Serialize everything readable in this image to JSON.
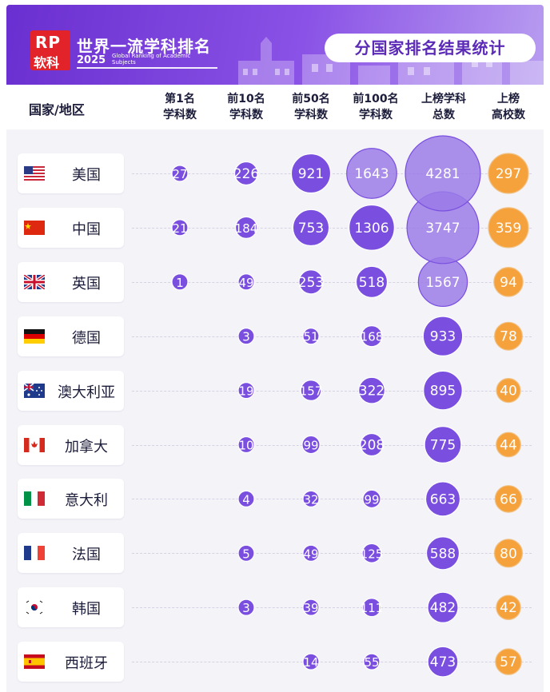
{
  "header": {
    "logo_mark": "RP",
    "logo_text": "软科",
    "title": "世界一流学科排名",
    "year": "2025",
    "subtitle": "Global Ranking of Academic Subjects",
    "stat_title": "分国家排名结果统计"
  },
  "columns": {
    "country": "国家/地区",
    "top1": [
      "第1名",
      "学科数"
    ],
    "top10": [
      "前10名",
      "学科数"
    ],
    "top50": [
      "前50名",
      "学科数"
    ],
    "top100": [
      "前100名",
      "学科数"
    ],
    "total": [
      "上榜学科",
      "总数"
    ],
    "universities": [
      "上榜",
      "高校数"
    ]
  },
  "colors": {
    "purple": "#7a4fe0",
    "purple_light": "#9b7be8",
    "orange": "#f5a23c"
  },
  "chart_data": {
    "type": "table",
    "series": [
      {
        "name": "第1名学科数"
      },
      {
        "name": "前10名学科数"
      },
      {
        "name": "前50名学科数"
      },
      {
        "name": "前100名学科数"
      },
      {
        "name": "上榜学科总数"
      },
      {
        "name": "上榜高校数"
      }
    ],
    "rows": [
      {
        "country": "美国",
        "flag": "us",
        "values": [
          27,
          226,
          921,
          1643,
          4281,
          297
        ]
      },
      {
        "country": "中国",
        "flag": "cn",
        "values": [
          21,
          184,
          753,
          1306,
          3747,
          359
        ]
      },
      {
        "country": "英国",
        "flag": "gb",
        "values": [
          1,
          49,
          253,
          518,
          1567,
          94
        ]
      },
      {
        "country": "德国",
        "flag": "de",
        "values": [
          null,
          3,
          51,
          168,
          933,
          78
        ]
      },
      {
        "country": "澳大利亚",
        "flag": "au",
        "values": [
          null,
          19,
          157,
          322,
          895,
          40
        ]
      },
      {
        "country": "加拿大",
        "flag": "ca",
        "values": [
          null,
          10,
          99,
          208,
          775,
          44
        ]
      },
      {
        "country": "意大利",
        "flag": "it",
        "values": [
          null,
          4,
          32,
          99,
          663,
          66
        ]
      },
      {
        "country": "法国",
        "flag": "fr",
        "values": [
          null,
          5,
          49,
          125,
          588,
          80
        ]
      },
      {
        "country": "韩国",
        "flag": "kr",
        "values": [
          null,
          3,
          39,
          111,
          482,
          42
        ]
      },
      {
        "country": "西班牙",
        "flag": "es",
        "values": [
          null,
          null,
          14,
          55,
          473,
          57
        ]
      }
    ]
  }
}
